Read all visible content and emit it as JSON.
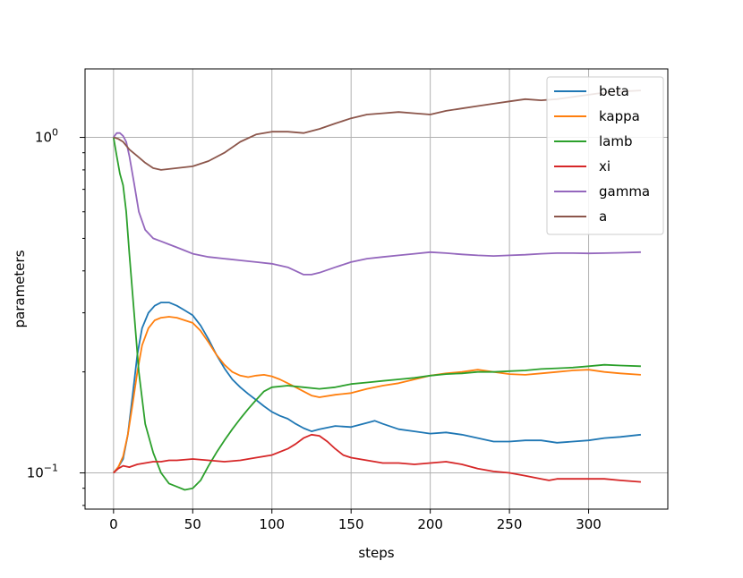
{
  "chart_data": {
    "type": "line",
    "xlabel": "steps",
    "ylabel": "parameters",
    "yscale": "log",
    "xlim": [
      -18,
      350
    ],
    "ylim": [
      0.078,
      1.6
    ],
    "grid": true,
    "legend_position": "top-right",
    "xticks": [
      0,
      50,
      100,
      150,
      200,
      250,
      300
    ],
    "xtick_labels": [
      "0",
      "50",
      "100",
      "150",
      "200",
      "250",
      "300"
    ],
    "yticks": [
      {
        "value": 1.0,
        "base": "10",
        "exp": "0"
      },
      {
        "value": 0.1,
        "base": "10",
        "exp": "−1"
      }
    ],
    "series": [
      {
        "name": "beta",
        "color": "#1f77b4",
        "x": [
          0,
          3,
          6,
          9,
          12,
          15,
          18,
          22,
          26,
          30,
          35,
          40,
          45,
          50,
          55,
          60,
          65,
          70,
          75,
          80,
          85,
          90,
          95,
          100,
          105,
          110,
          115,
          120,
          125,
          130,
          140,
          150,
          160,
          165,
          170,
          180,
          190,
          200,
          210,
          220,
          230,
          240,
          250,
          260,
          270,
          280,
          290,
          300,
          310,
          320,
          333
        ],
        "y": [
          0.1,
          0.104,
          0.11,
          0.13,
          0.17,
          0.225,
          0.27,
          0.3,
          0.315,
          0.322,
          0.322,
          0.315,
          0.305,
          0.295,
          0.275,
          0.25,
          0.225,
          0.205,
          0.19,
          0.18,
          0.172,
          0.165,
          0.158,
          0.152,
          0.148,
          0.145,
          0.14,
          0.136,
          0.133,
          0.135,
          0.138,
          0.137,
          0.141,
          0.143,
          0.14,
          0.135,
          0.133,
          0.131,
          0.132,
          0.13,
          0.127,
          0.124,
          0.124,
          0.125,
          0.125,
          0.123,
          0.124,
          0.125,
          0.127,
          0.128,
          0.13
        ]
      },
      {
        "name": "kappa",
        "color": "#ff7f0e",
        "x": [
          0,
          3,
          6,
          9,
          12,
          15,
          18,
          22,
          26,
          30,
          35,
          40,
          45,
          50,
          55,
          60,
          65,
          70,
          75,
          80,
          85,
          90,
          95,
          100,
          105,
          110,
          115,
          120,
          125,
          130,
          140,
          150,
          160,
          170,
          180,
          190,
          200,
          210,
          220,
          230,
          240,
          250,
          260,
          270,
          280,
          290,
          300,
          310,
          320,
          333
        ],
        "y": [
          0.1,
          0.104,
          0.112,
          0.13,
          0.16,
          0.2,
          0.24,
          0.27,
          0.285,
          0.29,
          0.292,
          0.29,
          0.285,
          0.28,
          0.265,
          0.245,
          0.225,
          0.21,
          0.2,
          0.195,
          0.193,
          0.195,
          0.196,
          0.194,
          0.19,
          0.185,
          0.18,
          0.175,
          0.17,
          0.168,
          0.171,
          0.173,
          0.178,
          0.182,
          0.185,
          0.19,
          0.195,
          0.198,
          0.2,
          0.203,
          0.2,
          0.197,
          0.196,
          0.198,
          0.2,
          0.202,
          0.203,
          0.2,
          0.198,
          0.196
        ]
      },
      {
        "name": "lamb",
        "color": "#2ca02c",
        "x": [
          0,
          2,
          4,
          6,
          8,
          10,
          13,
          16,
          20,
          25,
          30,
          35,
          40,
          45,
          50,
          55,
          60,
          65,
          70,
          75,
          80,
          85,
          90,
          95,
          100,
          110,
          120,
          130,
          140,
          150,
          160,
          170,
          180,
          190,
          200,
          210,
          220,
          230,
          240,
          250,
          260,
          270,
          280,
          290,
          300,
          310,
          320,
          333
        ],
        "y": [
          1.0,
          0.88,
          0.78,
          0.72,
          0.6,
          0.45,
          0.3,
          0.2,
          0.14,
          0.115,
          0.1,
          0.093,
          0.091,
          0.089,
          0.09,
          0.095,
          0.105,
          0.115,
          0.125,
          0.135,
          0.145,
          0.155,
          0.165,
          0.175,
          0.18,
          0.182,
          0.18,
          0.178,
          0.18,
          0.184,
          0.186,
          0.188,
          0.19,
          0.192,
          0.195,
          0.197,
          0.198,
          0.2,
          0.2,
          0.201,
          0.202,
          0.204,
          0.205,
          0.206,
          0.208,
          0.21,
          0.209,
          0.208
        ]
      },
      {
        "name": "xi",
        "color": "#d62728",
        "x": [
          0,
          3,
          6,
          10,
          15,
          20,
          25,
          30,
          35,
          40,
          50,
          60,
          70,
          80,
          90,
          100,
          110,
          115,
          120,
          125,
          130,
          135,
          140,
          145,
          150,
          160,
          170,
          180,
          190,
          200,
          210,
          220,
          230,
          240,
          250,
          260,
          270,
          275,
          280,
          290,
          300,
          310,
          320,
          333
        ],
        "y": [
          0.1,
          0.103,
          0.105,
          0.104,
          0.106,
          0.107,
          0.108,
          0.108,
          0.109,
          0.109,
          0.11,
          0.109,
          0.108,
          0.109,
          0.111,
          0.113,
          0.118,
          0.122,
          0.127,
          0.13,
          0.129,
          0.124,
          0.118,
          0.113,
          0.111,
          0.109,
          0.107,
          0.107,
          0.106,
          0.107,
          0.108,
          0.106,
          0.103,
          0.101,
          0.1,
          0.098,
          0.096,
          0.095,
          0.096,
          0.096,
          0.096,
          0.096,
          0.095,
          0.094
        ]
      },
      {
        "name": "gamma",
        "color": "#9467bd",
        "x": [
          0,
          2,
          4,
          6,
          8,
          10,
          13,
          16,
          20,
          25,
          30,
          35,
          40,
          45,
          50,
          60,
          70,
          80,
          90,
          100,
          110,
          115,
          120,
          125,
          130,
          140,
          150,
          160,
          170,
          180,
          190,
          200,
          210,
          220,
          230,
          240,
          250,
          260,
          270,
          280,
          290,
          300,
          310,
          320,
          333
        ],
        "y": [
          1.0,
          1.03,
          1.03,
          1.01,
          0.97,
          0.88,
          0.73,
          0.6,
          0.53,
          0.5,
          0.49,
          0.48,
          0.47,
          0.46,
          0.45,
          0.44,
          0.435,
          0.43,
          0.425,
          0.42,
          0.41,
          0.4,
          0.39,
          0.39,
          0.395,
          0.41,
          0.425,
          0.435,
          0.44,
          0.445,
          0.45,
          0.455,
          0.452,
          0.448,
          0.445,
          0.443,
          0.445,
          0.447,
          0.45,
          0.452,
          0.452,
          0.451,
          0.452,
          0.453,
          0.455
        ]
      },
      {
        "name": "a",
        "color": "#8c564b",
        "x": [
          0,
          3,
          6,
          10,
          15,
          20,
          25,
          30,
          40,
          50,
          60,
          70,
          80,
          90,
          100,
          110,
          120,
          130,
          140,
          150,
          160,
          170,
          180,
          190,
          200,
          210,
          220,
          230,
          240,
          250,
          260,
          270,
          280,
          290,
          300,
          310,
          320,
          333
        ],
        "y": [
          1.0,
          0.99,
          0.97,
          0.92,
          0.88,
          0.84,
          0.81,
          0.8,
          0.81,
          0.82,
          0.85,
          0.9,
          0.97,
          1.02,
          1.04,
          1.04,
          1.03,
          1.06,
          1.1,
          1.14,
          1.17,
          1.18,
          1.19,
          1.18,
          1.17,
          1.2,
          1.22,
          1.24,
          1.26,
          1.28,
          1.3,
          1.29,
          1.3,
          1.32,
          1.34,
          1.36,
          1.37,
          1.38
        ]
      }
    ]
  }
}
